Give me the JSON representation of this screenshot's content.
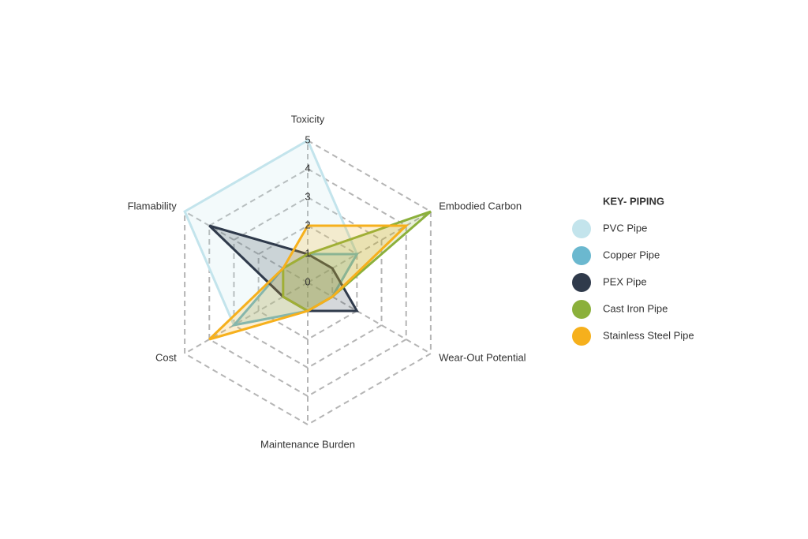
{
  "chart_data": {
    "type": "radar",
    "categories": [
      "Toxicity",
      "Embodied Carbon",
      "Wear-Out Potential",
      "Maintenance Burden",
      "Cost",
      "Flamability"
    ],
    "rlim": [
      0,
      5
    ],
    "rticks": [
      0,
      1,
      2,
      3,
      4,
      5
    ],
    "legend_title": "KEY- PIPING",
    "legend": "right",
    "series": [
      {
        "name": "PVC Pipe",
        "color": "#c3e4ec",
        "values": [
          5,
          2,
          1,
          1,
          3,
          5
        ]
      },
      {
        "name": "Copper Pipe",
        "color": "#6bb8cf",
        "values": [
          1,
          2,
          1,
          1,
          3,
          1
        ]
      },
      {
        "name": "PEX Pipe",
        "color": "#2f3a4b",
        "values": [
          1,
          1,
          2,
          1,
          1,
          4
        ]
      },
      {
        "name": "Cast Iron Pipe",
        "color": "#8bb03b",
        "values": [
          1,
          5,
          1,
          1,
          1,
          1
        ]
      },
      {
        "name": "Stainless Steel Pipe",
        "color": "#f6b01c",
        "values": [
          2,
          4,
          1,
          1,
          4,
          1
        ]
      }
    ]
  }
}
